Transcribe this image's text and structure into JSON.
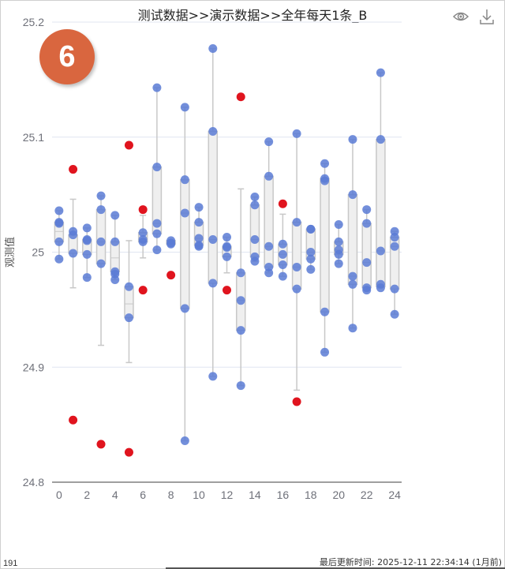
{
  "header": {
    "title": "测试数据>>演示数据>>全年每天1条_B",
    "icons": [
      "eye-icon",
      "download-icon"
    ]
  },
  "badge": {
    "value": "6",
    "color": "#d9663f"
  },
  "footer": {
    "count": "191",
    "updated": "最后更新时间: 2025-12-11 22:34:14 (1月前)"
  },
  "chart_data": {
    "type": "boxplot",
    "title": "测试数据>>演示数据>>全年每天1条_B",
    "ylabel": "观测值",
    "xlabel": "",
    "xlim": [
      -0.5,
      24.5
    ],
    "ylim": [
      24.8,
      25.2
    ],
    "xticks": [
      "0",
      "2",
      "4",
      "6",
      "8",
      "10",
      "12",
      "14",
      "16",
      "18",
      "20",
      "22",
      "24"
    ],
    "yticks": [
      "24.8",
      "24.9",
      "25",
      "25.1",
      "25.2"
    ],
    "grid": true,
    "colors": {
      "point": "#5b7bd5",
      "outlier": "#e0141e",
      "box_fill": "#efefef",
      "box_stroke": "#c8c8c8"
    },
    "categories": [
      0,
      1,
      2,
      3,
      4,
      5,
      6,
      7,
      8,
      9,
      10,
      11,
      12,
      13,
      14,
      15,
      16,
      17,
      18,
      19,
      20,
      21,
      22,
      23,
      24
    ],
    "boxes": [
      [
        24.994,
        25.009,
        25.018,
        25.026,
        25.036
      ],
      [
        24.969,
        24.999,
        25.015,
        25.015,
        25.046
      ],
      [
        24.978,
        24.998,
        25.01,
        25.011,
        25.021
      ],
      [
        24.919,
        24.99,
        25.009,
        25.037,
        25.049
      ],
      [
        24.976,
        24.983,
        24.995,
        25.009,
        25.032
      ],
      [
        24.904,
        24.943,
        24.955,
        24.97,
        25.01
      ],
      [
        24.995,
        25.009,
        25.011,
        25.017,
        25.032
      ],
      [
        25.002,
        25.016,
        25.025,
        25.074,
        25.143
      ],
      [
        25.007,
        25.007,
        25.008,
        25.01,
        25.01
      ],
      [
        24.836,
        24.951,
        25.034,
        25.063,
        25.126
      ],
      [
        25.005,
        25.006,
        25.012,
        25.026,
        25.039
      ],
      [
        24.892,
        24.973,
        25.011,
        25.105,
        25.177
      ],
      [
        24.982,
        24.996,
        25.004,
        25.005,
        25.013
      ],
      [
        24.884,
        24.932,
        24.958,
        24.982,
        25.055
      ],
      [
        24.992,
        24.996,
        25.011,
        25.041,
        25.048
      ],
      [
        24.982,
        24.987,
        25.005,
        25.066,
        25.096
      ],
      [
        24.979,
        24.989,
        24.998,
        25.007,
        25.033
      ],
      [
        24.88,
        24.968,
        24.987,
        25.026,
        25.103
      ],
      [
        24.985,
        24.994,
        25.0,
        25.02,
        25.02
      ],
      [
        24.913,
        24.948,
        25.062,
        25.064,
        25.077
      ],
      [
        24.99,
        24.998,
        25.002,
        25.009,
        25.024
      ],
      [
        24.934,
        24.972,
        24.979,
        25.05,
        25.098
      ],
      [
        24.967,
        24.969,
        24.991,
        25.025,
        25.037
      ],
      [
        24.969,
        24.97,
        25.001,
        25.098,
        25.156
      ],
      [
        24.946,
        24.968,
        25.005,
        25.013,
        25.018
      ]
    ],
    "points": [
      [
        25.036,
        25.026,
        25.025,
        25.009,
        24.994
      ],
      [
        25.018,
        25.015,
        24.999
      ],
      [
        25.021,
        25.011,
        25.01,
        24.998,
        24.978
      ],
      [
        25.049,
        25.037,
        25.009,
        24.99
      ],
      [
        25.032,
        25.009,
        24.983,
        24.981,
        24.976
      ],
      [
        24.97,
        24.943
      ],
      [
        25.017,
        25.011,
        25.009
      ],
      [
        25.143,
        25.074,
        25.025,
        25.016,
        25.002
      ],
      [
        25.01,
        25.008,
        25.007
      ],
      [
        25.126,
        25.063,
        25.034,
        24.951,
        24.836
      ],
      [
        25.039,
        25.026,
        25.012,
        25.006,
        25.005
      ],
      [
        25.177,
        25.105,
        25.011,
        24.973,
        24.892
      ],
      [
        25.013,
        25.005,
        25.004,
        24.996
      ],
      [
        24.982,
        24.958,
        24.932,
        24.884
      ],
      [
        25.048,
        25.041,
        25.011,
        24.996,
        24.992
      ],
      [
        25.096,
        25.066,
        25.005,
        24.987,
        24.982
      ],
      [
        25.007,
        24.998,
        24.989,
        24.979
      ],
      [
        25.103,
        25.026,
        24.987,
        24.968
      ],
      [
        25.02,
        25.02,
        25.0,
        24.994,
        24.985
      ],
      [
        25.077,
        25.064,
        25.062,
        24.948,
        24.913
      ],
      [
        25.024,
        25.009,
        25.002,
        24.998,
        24.99
      ],
      [
        25.098,
        25.05,
        24.979,
        24.972,
        24.934
      ],
      [
        25.037,
        25.025,
        24.991,
        24.969,
        24.967
      ],
      [
        25.156,
        25.098,
        25.001,
        24.972,
        24.969
      ],
      [
        25.018,
        25.013,
        25.005,
        24.968,
        24.946
      ]
    ],
    "outliers": [
      [
        1,
        25.072
      ],
      [
        1,
        24.854
      ],
      [
        3,
        24.833
      ],
      [
        5,
        25.093
      ],
      [
        5,
        24.826
      ],
      [
        6,
        25.037
      ],
      [
        6,
        24.967
      ],
      [
        8,
        24.98
      ],
      [
        12,
        24.967
      ],
      [
        13,
        25.135
      ],
      [
        16,
        25.042
      ],
      [
        17,
        24.87
      ]
    ]
  }
}
